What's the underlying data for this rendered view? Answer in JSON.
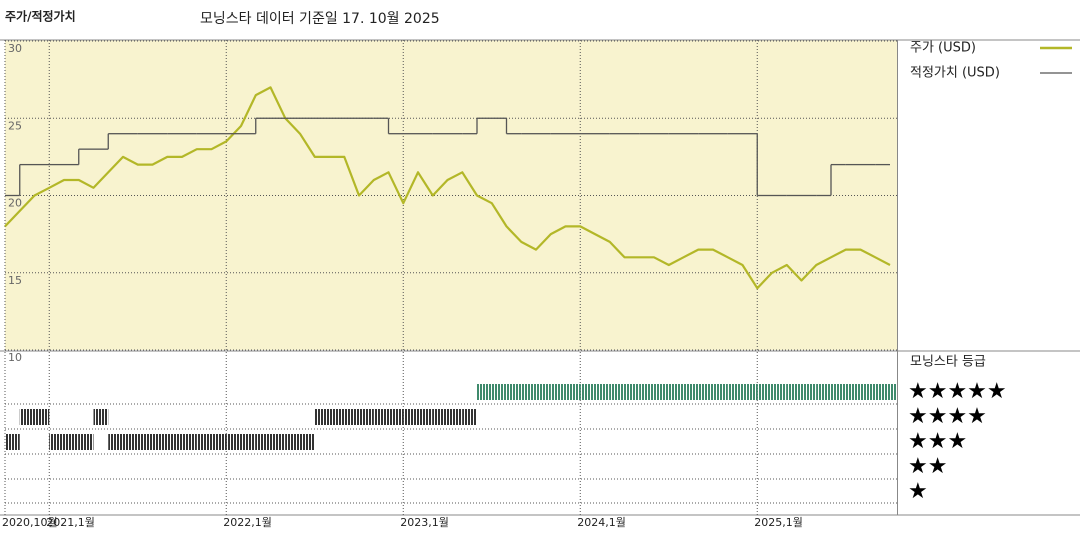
{
  "chart_data": {
    "type": "line",
    "title": "주가/적정가치",
    "subtitle": "모닝스타 데이터 기준일 17. 10월 2025",
    "x": [
      "2020-10",
      "2020-11",
      "2020-12",
      "2021-01",
      "2021-02",
      "2021-03",
      "2021-04",
      "2021-05",
      "2021-06",
      "2021-07",
      "2021-08",
      "2021-09",
      "2021-10",
      "2021-11",
      "2021-12",
      "2022-01",
      "2022-02",
      "2022-03",
      "2022-04",
      "2022-05",
      "2022-06",
      "2022-07",
      "2022-08",
      "2022-09",
      "2022-10",
      "2022-11",
      "2022-12",
      "2023-01",
      "2023-02",
      "2023-03",
      "2023-04",
      "2023-05",
      "2023-06",
      "2023-07",
      "2023-08",
      "2023-09",
      "2023-10",
      "2023-11",
      "2023-12",
      "2024-01",
      "2024-02",
      "2024-03",
      "2024-04",
      "2024-05",
      "2024-06",
      "2024-07",
      "2024-08",
      "2024-09",
      "2024-10",
      "2024-11",
      "2024-12",
      "2025-01",
      "2025-02",
      "2025-03",
      "2025-04",
      "2025-05",
      "2025-06",
      "2025-07",
      "2025-08",
      "2025-09",
      "2025-10"
    ],
    "series": [
      {
        "name": "주가 (USD)",
        "color": "#b3b728",
        "values": [
          18,
          19,
          20,
          20.5,
          21,
          21,
          20.5,
          21.5,
          22.5,
          22,
          22,
          22.5,
          22.5,
          23,
          23,
          23.5,
          24.5,
          26.5,
          27,
          25,
          24,
          22.5,
          22.5,
          22.5,
          20,
          21,
          21.5,
          19.5,
          21.5,
          20,
          21,
          21.5,
          20,
          19.5,
          18,
          17,
          16.5,
          17.5,
          18,
          18,
          17.5,
          17,
          16,
          16,
          16,
          15.5,
          16,
          16.5,
          16.5,
          16,
          15.5,
          14,
          15,
          15.5,
          14.5,
          15.5,
          16,
          16.5,
          16.5,
          16,
          15.5
        ]
      },
      {
        "name": "적정가치 (USD)",
        "color": "#555555",
        "step": true,
        "values": [
          20,
          22,
          22,
          22,
          22,
          23,
          23,
          24,
          24,
          24,
          24,
          24,
          24,
          24,
          24,
          24,
          24,
          25,
          25,
          25,
          25,
          25,
          25,
          25,
          25,
          25,
          24,
          24,
          24,
          24,
          24,
          24,
          25,
          25,
          24,
          24,
          24,
          24,
          24,
          24,
          24,
          24,
          24,
          24,
          24,
          24,
          24,
          24,
          24,
          24,
          24,
          20,
          20,
          20,
          20,
          20,
          22,
          22,
          22,
          22,
          22
        ]
      }
    ],
    "ylim": [
      10,
      30
    ],
    "yticks": [
      10,
      15,
      20,
      25,
      30
    ],
    "xticks": [
      {
        "value": "2020-10",
        "label": "2020,10월"
      },
      {
        "value": "2021-01",
        "label": "2021,1월"
      },
      {
        "value": "2022-01",
        "label": "2022,1월"
      },
      {
        "value": "2023-01",
        "label": "2023,1월"
      },
      {
        "value": "2024-01",
        "label": "2024,1월"
      },
      {
        "value": "2025-01",
        "label": "2025,1월"
      }
    ],
    "grid": true,
    "background": "#f8f3cf",
    "rating": {
      "name": "모닝스타 등급",
      "levels": [
        {
          "value": 5,
          "label": "★★★★★",
          "color": "#3f8a6c"
        },
        {
          "value": 4,
          "label": "★★★★",
          "color": "#333333"
        },
        {
          "value": 3,
          "label": "★★★",
          "color": "#333333"
        },
        {
          "value": 2,
          "label": "★★",
          "color": "#333333"
        },
        {
          "value": 1,
          "label": "★",
          "color": "#333333"
        }
      ],
      "values": [
        3,
        4,
        4,
        3,
        3,
        3,
        4,
        3,
        3,
        3,
        3,
        3,
        3,
        3,
        3,
        3,
        3,
        3,
        3,
        3,
        3,
        4,
        4,
        4,
        4,
        4,
        4,
        4,
        4,
        4,
        4,
        4,
        5,
        5,
        5,
        5,
        5,
        5,
        5,
        5,
        5,
        5,
        5,
        5,
        5,
        5,
        5,
        5,
        5,
        5,
        5,
        5,
        5,
        5,
        5,
        5,
        5,
        5,
        5,
        5,
        5
      ]
    }
  }
}
